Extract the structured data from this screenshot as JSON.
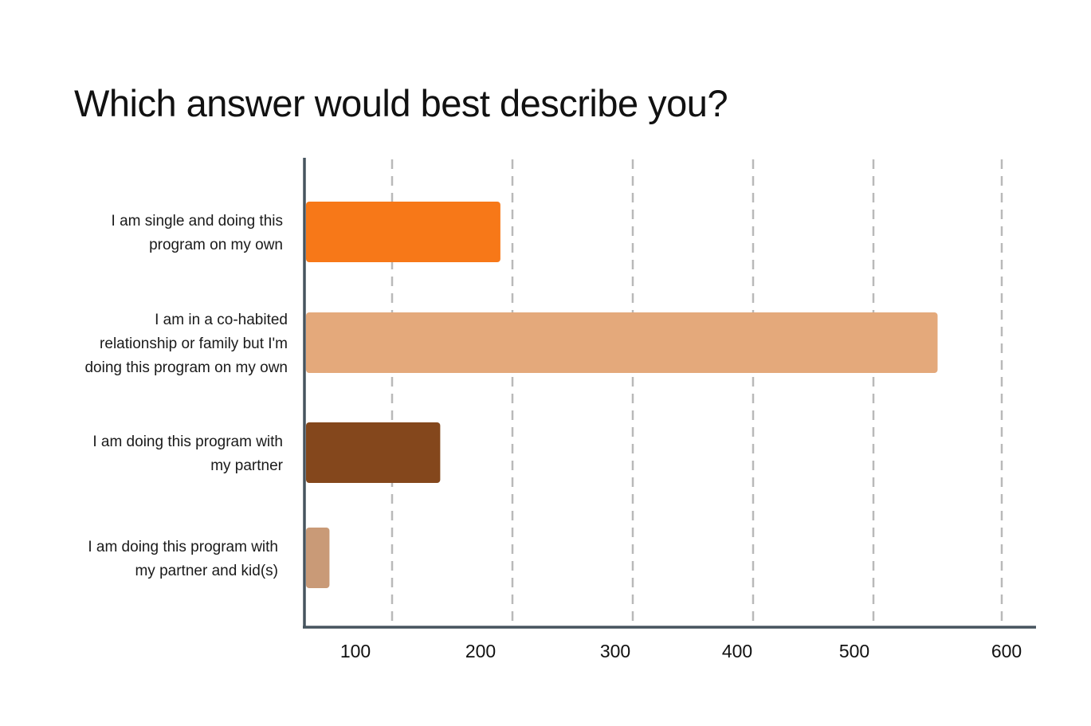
{
  "chart_data": {
    "type": "bar",
    "orientation": "horizontal",
    "title": "Which answer would best describe you?",
    "xlabel": "",
    "ylabel": "",
    "xlim": [
      30,
      610
    ],
    "x_ticks": [
      100,
      200,
      300,
      400,
      500,
      600
    ],
    "grid": {
      "x": true,
      "style": "dashed"
    },
    "categories": [
      [
        "I am single and doing this",
        "program on my own"
      ],
      [
        "I am in a co-habited",
        "relationship or family but I'm",
        "doing this program on my own"
      ],
      [
        "I am doing this program with",
        "my partner"
      ],
      [
        "I am doing this program with",
        "my partner and kid(s)"
      ]
    ],
    "values": [
      190,
      550,
      140,
      50
    ],
    "colors": [
      "#f77818",
      "#e4a97b",
      "#84471c",
      "#c99a77"
    ]
  }
}
